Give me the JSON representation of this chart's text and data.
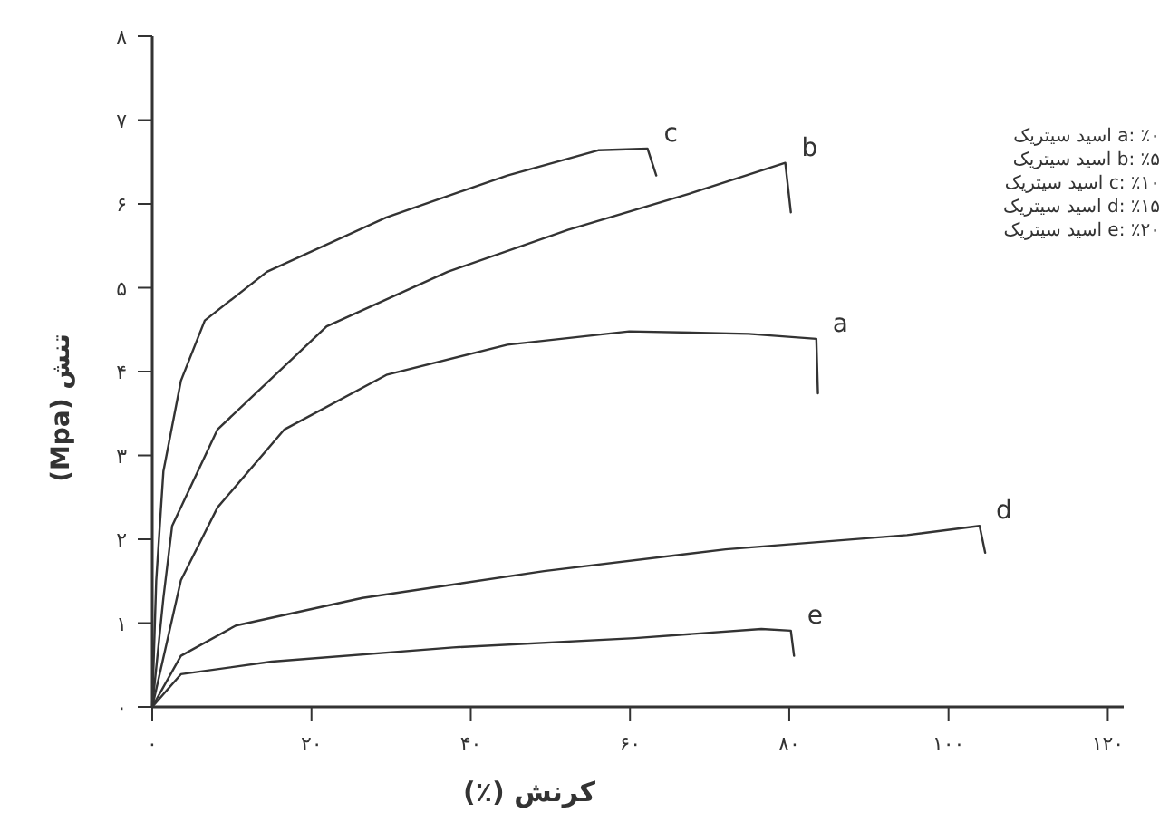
{
  "chart_data": {
    "type": "line",
    "xlabel": "کرنش (٪)",
    "ylabel": "تنش (Mpa)",
    "xlim": [
      0,
      122
    ],
    "ylim": [
      0,
      8
    ],
    "xticks": [
      {
        "value": 0,
        "label": "۰"
      },
      {
        "value": 20,
        "label": "۲۰"
      },
      {
        "value": 40,
        "label": "۴۰"
      },
      {
        "value": 60,
        "label": "۶۰"
      },
      {
        "value": 80,
        "label": "۸۰"
      },
      {
        "value": 100,
        "label": "۱۰۰"
      },
      {
        "value": 120,
        "label": "۱۲۰"
      }
    ],
    "yticks": [
      {
        "value": 0,
        "label": "۰"
      },
      {
        "value": 1,
        "label": "۱"
      },
      {
        "value": 2,
        "label": "۲"
      },
      {
        "value": 3,
        "label": "۳"
      },
      {
        "value": 4,
        "label": "۴"
      },
      {
        "value": 5,
        "label": "۵"
      },
      {
        "value": 6,
        "label": "۶"
      },
      {
        "value": 7,
        "label": "۷"
      },
      {
        "value": 8,
        "label": "۸"
      }
    ],
    "grid": false,
    "marker": "none",
    "line_style": "solid",
    "series": [
      {
        "name": "a",
        "color": "#333333",
        "x": [
          0,
          3.6,
          8.2,
          16.6,
          29.4,
          44.6,
          59.9,
          74.9,
          83.4,
          83.6
        ],
        "values": [
          0,
          1.51,
          2.38,
          3.31,
          3.96,
          4.32,
          4.48,
          4.45,
          4.39,
          3.74
        ]
      },
      {
        "name": "b",
        "color": "#333333",
        "x": [
          0,
          1.4,
          2.5,
          8.2,
          21.9,
          37.1,
          52.2,
          67.4,
          79.5,
          80.2
        ],
        "values": [
          0,
          1.3,
          2.16,
          3.31,
          4.54,
          5.19,
          5.69,
          6.12,
          6.49,
          5.9
        ]
      },
      {
        "name": "c",
        "color": "#333333",
        "x": [
          0,
          0.5,
          1.4,
          3.6,
          6.6,
          14.4,
          29.4,
          44.6,
          56,
          62.2,
          63.3
        ],
        "values": [
          0,
          1.51,
          2.81,
          3.89,
          4.61,
          5.19,
          5.84,
          6.34,
          6.64,
          6.66,
          6.34
        ]
      },
      {
        "name": "d",
        "color": "#333333",
        "x": [
          0,
          3.6,
          10.5,
          26.4,
          49.2,
          72,
          94.8,
          103.9,
          104.6
        ],
        "values": [
          0,
          0.61,
          0.97,
          1.3,
          1.62,
          1.88,
          2.05,
          2.16,
          1.84
        ]
      },
      {
        "name": "e",
        "color": "#333333",
        "x": [
          0,
          3.6,
          15,
          37.8,
          60.6,
          76.5,
          80.2,
          80.6
        ],
        "values": [
          0,
          0.39,
          0.54,
          0.71,
          0.82,
          0.93,
          0.91,
          0.61
        ]
      }
    ],
    "annotations": [
      "a: ٪۰ اسید سیتریک",
      "b: ٪۵ اسید سیتریک",
      "c: ٪۱۰ اسید سیتریک",
      "d: ٪۱۵ اسید سیتریک",
      "e: ٪۲۰ اسید سیتریک"
    ]
  }
}
